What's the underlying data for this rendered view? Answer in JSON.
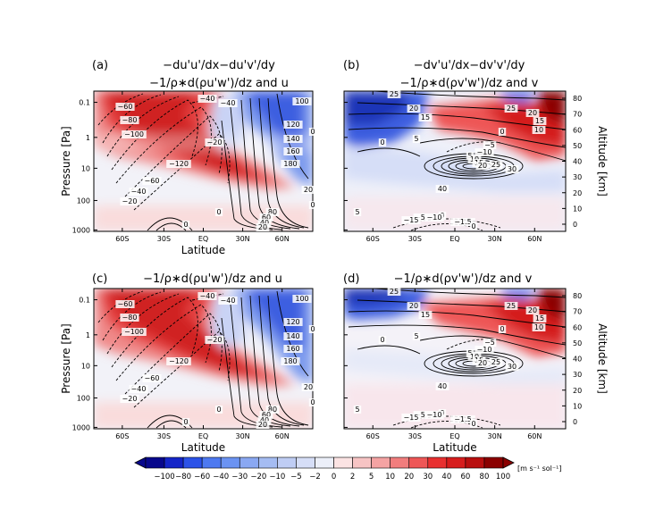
{
  "panels": [
    {
      "tag": "(a)",
      "title_line1": "−du'u'/dx−du'v'/dy",
      "title_line2": "−1/ρ∗d(ρu'w')/dz and u",
      "xlabel": "Latitude",
      "ylabel": "Pressure [Pa]",
      "right_axis": false,
      "contour_labels": [
        "−40",
        "−60",
        "−40",
        "−80",
        "−20",
        "−100",
        "−120",
        "−60",
        "−40",
        "−20",
        "0",
        "100",
        "120",
        "140",
        "160",
        "180",
        "80",
        "60",
        "40",
        "20",
        "0",
        "0",
        "20",
        "0"
      ]
    },
    {
      "tag": "(b)",
      "title_line1": "−dv'u'/dx−dv'v'/dy",
      "title_line2": "−1/ρ∗d(ρv'w')/dz and v",
      "xlabel": "",
      "ylabel": "",
      "right_axis": true,
      "contour_labels": [
        "25",
        "20",
        "15",
        "25",
        "20",
        "15",
        "10",
        "0",
        "5",
        "0",
        "−5",
        "−10",
        "5",
        "10",
        "15",
        "20",
        "25",
        "30",
        "40",
        "5",
        "0",
        "−5",
        "−10",
        "−15",
        "−1.5",
        "0"
      ]
    },
    {
      "tag": "(c)",
      "title_line1": "−1/ρ∗d(ρu'w')/dz and u",
      "title_line2": "",
      "xlabel": "Latitude",
      "ylabel": "Pressure [Pa]",
      "right_axis": false,
      "contour_labels": [
        "−40",
        "−60",
        "−40",
        "−80",
        "−20",
        "−100",
        "−120",
        "−60",
        "−40",
        "−20",
        "0",
        "100",
        "120",
        "140",
        "160",
        "180",
        "80",
        "60",
        "40",
        "20",
        "0",
        "0",
        "20",
        "0"
      ]
    },
    {
      "tag": "(d)",
      "title_line1": "−1/ρ∗d(ρv'w')/dz and v",
      "title_line2": "",
      "xlabel": "Latitude",
      "ylabel": "",
      "right_axis": true,
      "contour_labels": [
        "25",
        "20",
        "15",
        "25",
        "20",
        "15",
        "10",
        "0",
        "5",
        "0",
        "−5",
        "−10",
        "5",
        "10",
        "15",
        "20",
        "25",
        "30",
        "40",
        "5",
        "0",
        "−5",
        "−10",
        "−15",
        "−1.5",
        "0"
      ]
    }
  ],
  "pressure_ticks": [
    "0.1",
    "1",
    "10",
    "100",
    "1000"
  ],
  "altitude_ticks": [
    "80",
    "70",
    "60",
    "50",
    "40",
    "30",
    "20",
    "10",
    "0"
  ],
  "altitude_label": "Altitude [km]",
  "latitude_ticks": [
    "60S",
    "30S",
    "EQ",
    "30N",
    "60N"
  ],
  "colorbar": {
    "labels": [
      "−100",
      "−80",
      "−60",
      "−40",
      "−30",
      "−20",
      "−10",
      "−5",
      "−2",
      "0",
      "2",
      "5",
      "10",
      "20",
      "30",
      "40",
      "60",
      "80",
      "100"
    ],
    "units": "[m s⁻¹ sol⁻¹]",
    "colors": [
      "#08088c",
      "#1525c8",
      "#2c52e8",
      "#4d79f0",
      "#6b93f2",
      "#8aa8f2",
      "#a5bcf2",
      "#bfcdf4",
      "#d6def7",
      "#eceff9",
      "#fbe3e3",
      "#f7c4c4",
      "#f4a3a3",
      "#f17d7d",
      "#ee5656",
      "#e83030",
      "#d71d1d",
      "#b90f0f",
      "#8b0000"
    ]
  },
  "chart_data": [
    {
      "type": "heatmap",
      "panel": "a",
      "title": "−du'u'/dx−du'v'/dy −1/ρ∗d(ρu'w')/dz and u",
      "xlabel": "Latitude",
      "ylabel": "Pressure [Pa]",
      "x_ticks": [
        "60S",
        "30S",
        "EQ",
        "30N",
        "60N"
      ],
      "y_ticks": [
        "0.1",
        "1",
        "10",
        "100",
        "1000"
      ],
      "y_scale": "log",
      "ylim": [
        1000,
        0.05
      ],
      "contour_field": "u",
      "contour_levels": [
        -120,
        -100,
        -80,
        -60,
        -40,
        -20,
        0,
        20,
        40,
        60,
        80,
        100,
        120,
        140,
        160,
        180
      ],
      "color_field": "eddy forcing",
      "colorbar_levels": [
        -100,
        -80,
        -60,
        -40,
        -30,
        -20,
        -10,
        -5,
        -2,
        0,
        2,
        5,
        10,
        20,
        30,
        40,
        60,
        80,
        100
      ]
    },
    {
      "type": "heatmap",
      "panel": "b",
      "title": "−dv'u'/dx−dv'v'/dy −1/ρ∗d(ρv'w')/dz and v",
      "y_ticks_right": [
        "80",
        "70",
        "60",
        "50",
        "40",
        "30",
        "20",
        "10",
        "0"
      ],
      "ylabel_right": "Altitude [km]",
      "contour_field": "v",
      "contour_levels": [
        -15,
        -10,
        -5,
        0,
        5,
        10,
        15,
        20,
        25,
        30,
        40
      ]
    },
    {
      "type": "heatmap",
      "panel": "c",
      "title": "−1/ρ∗d(ρu'w')/dz and u",
      "xlabel": "Latitude",
      "ylabel": "Pressure [Pa]",
      "contour_field": "u"
    },
    {
      "type": "heatmap",
      "panel": "d",
      "title": "−1/ρ∗d(ρv'w')/dz and v",
      "xlabel": "Latitude",
      "ylabel_right": "Altitude [km]",
      "contour_field": "v"
    }
  ]
}
